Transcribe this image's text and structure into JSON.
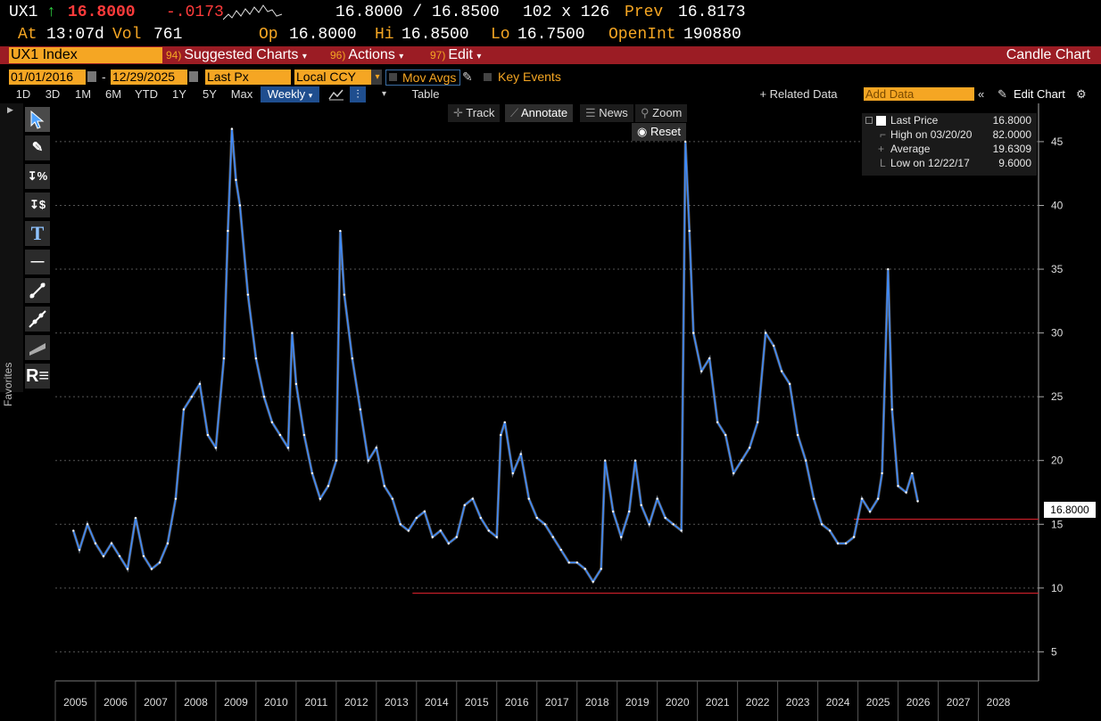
{
  "quote": {
    "ticker": "UX1",
    "arrow": "↑",
    "last": "16.8000",
    "change": "-.0173",
    "bid_ask": "16.8000 / 16.8500",
    "size": "102 x 126",
    "prev_label": "Prev",
    "prev": "16.8173",
    "at_label": "At",
    "time": "13:07d",
    "vol_label": "Vol",
    "vol": "761",
    "op_label": "Op",
    "op": "16.8000",
    "hi_label": "Hi",
    "hi": "16.8500",
    "lo_label": "Lo",
    "lo": "16.7500",
    "oi_label": "OpenInt",
    "oi": "190880"
  },
  "menubar": {
    "security": "UX1 Index",
    "suggested_num": "94)",
    "suggested": "Suggested Charts",
    "actions_num": "96)",
    "actions": "Actions",
    "edit_num": "97)",
    "edit": "Edit",
    "chart_type": "Candle Chart"
  },
  "settings": {
    "start_date": "01/01/2016",
    "end_date": "12/29/2025",
    "field": "Last Px",
    "currency": "Local CCY",
    "mov_avgs": "Mov Avgs",
    "key_events": "Key Events"
  },
  "periods": {
    "items": [
      "1D",
      "3D",
      "1M",
      "6M",
      "YTD",
      "1Y",
      "5Y",
      "Max"
    ],
    "frequency": "Weekly",
    "table": "Table",
    "related": "+ Related Data",
    "add_data_placeholder": "Add Data",
    "edit_chart": "Edit Chart"
  },
  "side": {
    "favorites": "Favorites"
  },
  "chart_controls": {
    "track": "Track",
    "annotate": "Annotate",
    "news": "News",
    "zoom": "Zoom",
    "reset": "Reset"
  },
  "legend": {
    "last_label": "Last Price",
    "last_value": "16.8000",
    "high_label": "High on 03/20/20",
    "high_value": "82.0000",
    "avg_label": "Average",
    "avg_value": "19.6309",
    "low_label": "Low on 12/22/17",
    "low_value": "9.6000"
  },
  "chart_data": {
    "type": "line",
    "title": "",
    "xlabel": "",
    "ylabel": "",
    "x_ticks": [
      "2005",
      "2006",
      "2007",
      "2008",
      "2009",
      "2010",
      "2011",
      "2012",
      "2013",
      "2014",
      "2015",
      "2016",
      "2017",
      "2018",
      "2019",
      "2020",
      "2021",
      "2022",
      "2023",
      "2024",
      "2025",
      "2026",
      "2027",
      "2028"
    ],
    "y_ticks": [
      5,
      10,
      15,
      20,
      25,
      30,
      35,
      40,
      45
    ],
    "ylim": [
      3,
      48
    ],
    "xlim": [
      2004.5,
      2029.0
    ],
    "last_price_label": "16.8000",
    "reference_lines": [
      {
        "value": 9.6,
        "from": 2013.4,
        "color": "#d0202a"
      },
      {
        "value": 15.4,
        "from": 2024.4,
        "color": "#d0202a"
      }
    ],
    "series": [
      {
        "x": [
          2004.95,
          2005.1,
          2005.3,
          2005.5,
          2005.7,
          2005.9,
          2006.1,
          2006.3,
          2006.5,
          2006.7,
          2006.9,
          2007.1,
          2007.3,
          2007.5,
          2007.7,
          2007.9,
          2008.1,
          2008.3,
          2008.5,
          2008.7,
          2008.8,
          2008.9,
          2009.0,
          2009.1,
          2009.3,
          2009.5,
          2009.7,
          2009.9,
          2010.1,
          2010.3,
          2010.4,
          2010.5,
          2010.7,
          2010.9,
          2011.1,
          2011.3,
          2011.5,
          2011.6,
          2011.7,
          2011.9,
          2012.1,
          2012.3,
          2012.5,
          2012.7,
          2012.9,
          2013.1,
          2013.3,
          2013.5,
          2013.7,
          2013.9,
          2014.1,
          2014.3,
          2014.5,
          2014.7,
          2014.9,
          2015.1,
          2015.3,
          2015.5,
          2015.6,
          2015.7,
          2015.9,
          2016.1,
          2016.3,
          2016.5,
          2016.7,
          2016.9,
          2017.1,
          2017.3,
          2017.5,
          2017.7,
          2017.9,
          2018.1,
          2018.2,
          2018.4,
          2018.6,
          2018.8,
          2018.95,
          2019.1,
          2019.3,
          2019.5,
          2019.7,
          2019.9,
          2020.1,
          2020.2,
          2020.3,
          2020.4,
          2020.6,
          2020.8,
          2021.0,
          2021.2,
          2021.4,
          2021.6,
          2021.8,
          2022.0,
          2022.2,
          2022.4,
          2022.6,
          2022.8,
          2023.0,
          2023.2,
          2023.4,
          2023.6,
          2023.8,
          2024.0,
          2024.2,
          2024.4,
          2024.6,
          2024.8,
          2025.0,
          2025.1,
          2025.25,
          2025.35,
          2025.5,
          2025.7,
          2025.85,
          2025.99
        ],
        "y": [
          14.5,
          13.0,
          15.0,
          13.5,
          12.5,
          13.5,
          12.5,
          11.5,
          15.5,
          12.5,
          11.5,
          12.0,
          13.5,
          17.0,
          24.0,
          25.0,
          26.0,
          22.0,
          21.0,
          28.0,
          38.0,
          46.0,
          42.0,
          40.0,
          33.0,
          28.0,
          25.0,
          23.0,
          22.0,
          21.0,
          30.0,
          26.0,
          22.0,
          19.0,
          17.0,
          18.0,
          20.0,
          38.0,
          33.0,
          28.0,
          24.0,
          20.0,
          21.0,
          18.0,
          17.0,
          15.0,
          14.5,
          15.5,
          16.0,
          14.0,
          14.5,
          13.5,
          14.0,
          16.5,
          17.0,
          15.5,
          14.5,
          14.0,
          22.0,
          23.0,
          19.0,
          20.5,
          17.0,
          15.5,
          15.0,
          14.0,
          13.0,
          12.0,
          12.0,
          11.5,
          10.5,
          11.5,
          20.0,
          16.0,
          14.0,
          16.0,
          20.0,
          16.5,
          15.0,
          17.0,
          15.5,
          15.0,
          14.5,
          45.0,
          38.0,
          30.0,
          27.0,
          28.0,
          23.0,
          22.0,
          19.0,
          20.0,
          21.0,
          23.0,
          30.0,
          29.0,
          27.0,
          26.0,
          22.0,
          20.0,
          17.0,
          15.0,
          14.5,
          13.5,
          13.5,
          14.0,
          17.0,
          16.0,
          17.0,
          19.0,
          35.0,
          24.0,
          18.0,
          17.5,
          19.0,
          16.8
        ]
      }
    ]
  }
}
